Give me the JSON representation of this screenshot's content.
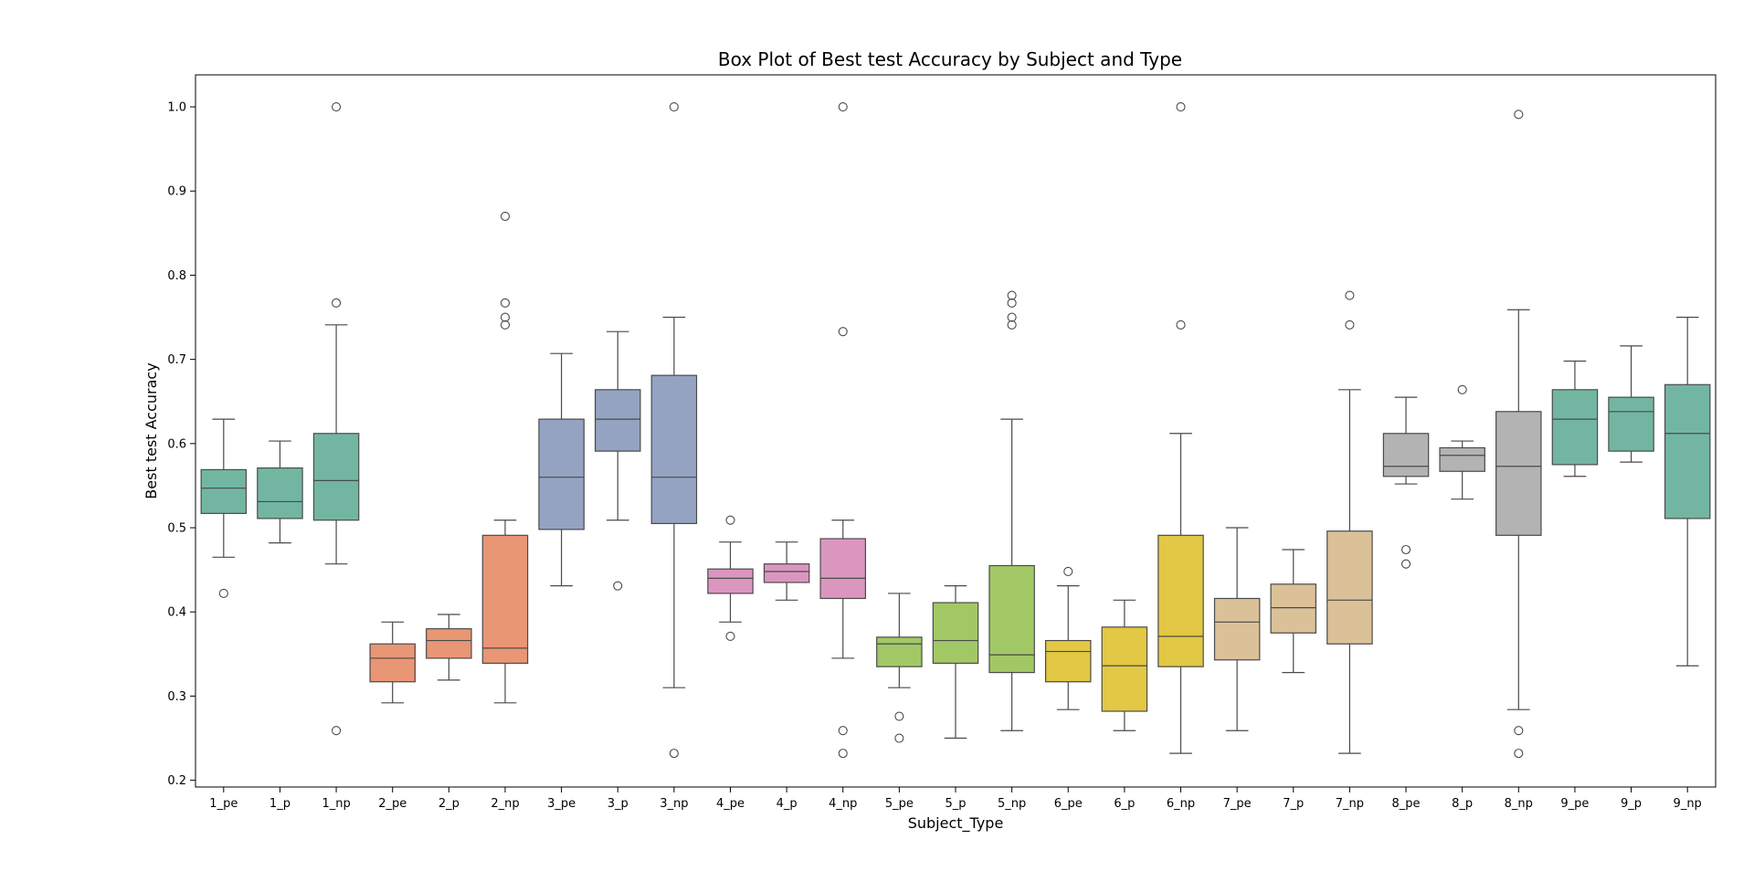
{
  "chart_data": {
    "type": "box",
    "title": "Box Plot of Best test Accuracy by Subject and Type",
    "xlabel": "Subject_Type",
    "ylabel": "Best test Accuracy",
    "ylim": [
      0.192,
      1.038
    ],
    "yticks": [
      0.2,
      0.3,
      0.4,
      0.5,
      0.6,
      0.7,
      0.8,
      0.9,
      1.0
    ],
    "ytick_labels": [
      "0.2",
      "0.3",
      "0.4",
      "0.5",
      "0.6",
      "0.7",
      "0.8",
      "0.9",
      "1.0"
    ],
    "grid": false,
    "legend": "none",
    "palette": {
      "1": "#72b6a1",
      "2": "#e99675",
      "3": "#95a3c3",
      "4": "#db96c0",
      "5": "#a2c865",
      "6": "#e2c844",
      "7": "#dbc198",
      "8": "#b3b3b3",
      "9": "#72b6a1"
    },
    "categories": [
      "1_pe",
      "1_p",
      "1_np",
      "2_pe",
      "2_p",
      "2_np",
      "3_pe",
      "3_p",
      "3_np",
      "4_pe",
      "4_p",
      "4_np",
      "5_pe",
      "5_p",
      "5_np",
      "6_pe",
      "6_p",
      "6_np",
      "7_pe",
      "7_p",
      "7_np",
      "8_pe",
      "8_p",
      "8_np",
      "9_pe",
      "9_p",
      "9_np"
    ],
    "groups": [
      "1",
      "1",
      "1",
      "2",
      "2",
      "2",
      "3",
      "3",
      "3",
      "4",
      "4",
      "4",
      "5",
      "5",
      "5",
      "6",
      "6",
      "6",
      "7",
      "7",
      "7",
      "8",
      "8",
      "8",
      "9",
      "9",
      "9"
    ],
    "boxes": [
      {
        "whislo": 0.465,
        "q1": 0.517,
        "med": 0.547,
        "q3": 0.569,
        "whishi": 0.629,
        "fliers": [
          0.422
        ]
      },
      {
        "whislo": 0.482,
        "q1": 0.511,
        "med": 0.531,
        "q3": 0.571,
        "whishi": 0.603,
        "fliers": []
      },
      {
        "whislo": 0.457,
        "q1": 0.509,
        "med": 0.556,
        "q3": 0.612,
        "whishi": 0.741,
        "fliers": [
          0.259,
          0.767,
          1.0
        ]
      },
      {
        "whislo": 0.292,
        "q1": 0.317,
        "med": 0.345,
        "q3": 0.362,
        "whishi": 0.388,
        "fliers": []
      },
      {
        "whislo": 0.319,
        "q1": 0.345,
        "med": 0.366,
        "q3": 0.38,
        "whishi": 0.397,
        "fliers": []
      },
      {
        "whislo": 0.292,
        "q1": 0.339,
        "med": 0.357,
        "q3": 0.491,
        "whishi": 0.509,
        "fliers": [
          0.741,
          0.75,
          0.767,
          0.87
        ]
      },
      {
        "whislo": 0.431,
        "q1": 0.498,
        "med": 0.56,
        "q3": 0.629,
        "whishi": 0.707,
        "fliers": []
      },
      {
        "whislo": 0.509,
        "q1": 0.591,
        "med": 0.629,
        "q3": 0.664,
        "whishi": 0.733,
        "fliers": [
          0.431
        ]
      },
      {
        "whislo": 0.31,
        "q1": 0.505,
        "med": 0.56,
        "q3": 0.681,
        "whishi": 0.75,
        "fliers": [
          0.232,
          1.0
        ]
      },
      {
        "whislo": 0.388,
        "q1": 0.422,
        "med": 0.44,
        "q3": 0.451,
        "whishi": 0.483,
        "fliers": [
          0.371,
          0.509
        ]
      },
      {
        "whislo": 0.414,
        "q1": 0.435,
        "med": 0.448,
        "q3": 0.457,
        "whishi": 0.483,
        "fliers": []
      },
      {
        "whislo": 0.345,
        "q1": 0.416,
        "med": 0.44,
        "q3": 0.487,
        "whishi": 0.509,
        "fliers": [
          0.232,
          0.259,
          0.733,
          1.0
        ]
      },
      {
        "whislo": 0.31,
        "q1": 0.335,
        "med": 0.362,
        "q3": 0.37,
        "whishi": 0.422,
        "fliers": [
          0.25,
          0.276
        ]
      },
      {
        "whislo": 0.25,
        "q1": 0.339,
        "med": 0.366,
        "q3": 0.411,
        "whishi": 0.431,
        "fliers": []
      },
      {
        "whislo": 0.259,
        "q1": 0.328,
        "med": 0.349,
        "q3": 0.455,
        "whishi": 0.629,
        "fliers": [
          0.741,
          0.75,
          0.767,
          0.776
        ]
      },
      {
        "whislo": 0.284,
        "q1": 0.317,
        "med": 0.353,
        "q3": 0.366,
        "whishi": 0.431,
        "fliers": [
          0.448
        ]
      },
      {
        "whislo": 0.259,
        "q1": 0.282,
        "med": 0.336,
        "q3": 0.382,
        "whishi": 0.414,
        "fliers": []
      },
      {
        "whislo": 0.232,
        "q1": 0.335,
        "med": 0.371,
        "q3": 0.491,
        "whishi": 0.612,
        "fliers": [
          0.741,
          1.0
        ]
      },
      {
        "whislo": 0.259,
        "q1": 0.343,
        "med": 0.388,
        "q3": 0.416,
        "whishi": 0.5,
        "fliers": []
      },
      {
        "whislo": 0.328,
        "q1": 0.375,
        "med": 0.405,
        "q3": 0.433,
        "whishi": 0.474,
        "fliers": []
      },
      {
        "whislo": 0.232,
        "q1": 0.362,
        "med": 0.414,
        "q3": 0.496,
        "whishi": 0.664,
        "fliers": [
          0.741,
          0.776
        ]
      },
      {
        "whislo": 0.552,
        "q1": 0.561,
        "med": 0.573,
        "q3": 0.612,
        "whishi": 0.655,
        "fliers": [
          0.457,
          0.474
        ]
      },
      {
        "whislo": 0.534,
        "q1": 0.567,
        "med": 0.586,
        "q3": 0.595,
        "whishi": 0.603,
        "fliers": [
          0.664
        ]
      },
      {
        "whislo": 0.284,
        "q1": 0.491,
        "med": 0.573,
        "q3": 0.638,
        "whishi": 0.759,
        "fliers": [
          0.232,
          0.259,
          0.991
        ]
      },
      {
        "whislo": 0.561,
        "q1": 0.575,
        "med": 0.629,
        "q3": 0.664,
        "whishi": 0.698,
        "fliers": []
      },
      {
        "whislo": 0.578,
        "q1": 0.591,
        "med": 0.638,
        "q3": 0.655,
        "whishi": 0.716,
        "fliers": []
      },
      {
        "whislo": 0.336,
        "q1": 0.511,
        "med": 0.612,
        "q3": 0.67,
        "whishi": 0.75,
        "fliers": []
      }
    ]
  }
}
